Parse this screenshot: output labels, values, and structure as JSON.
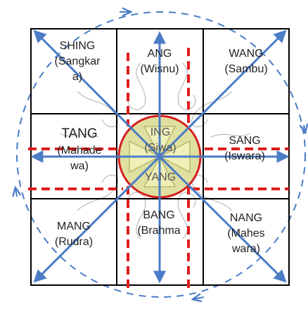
{
  "cells": {
    "nw": {
      "name": "SHING",
      "deity_l1": "(Sangkar",
      "deity_l2": "a)"
    },
    "n": {
      "name": "ANG",
      "deity_l1": "(Wisnu)"
    },
    "ne": {
      "name": "WANG",
      "deity_l1": "(Sambu)"
    },
    "w": {
      "name": "TANG",
      "deity_l1": "(Mahade",
      "deity_l2": "wa)"
    },
    "c": {
      "name": "ING",
      "deity_l1": "(Siwa)",
      "extra": "YANG"
    },
    "e": {
      "name": "SANG",
      "deity_l1": "(Iswara)"
    },
    "sw": {
      "name": "MANG",
      "deity_l1": "(Rudra)"
    },
    "s": {
      "name": "BANG",
      "deity_l1": "(Brahma"
    },
    "se": {
      "name": "NANG",
      "deity_l1": "(Mahes",
      "deity_l2": "wara)"
    }
  },
  "colors": {
    "grid": "#000000",
    "arrow": "#4a7cc7",
    "dashed_red": "#e01c1c",
    "circle_fill": "#dfe0a0",
    "circle_stroke": "#d62020",
    "orbit": "#4a7cc7"
  },
  "icons": [
    "arrow-icon",
    "dashed-orbit-icon",
    "lotus-circle-icon"
  ]
}
